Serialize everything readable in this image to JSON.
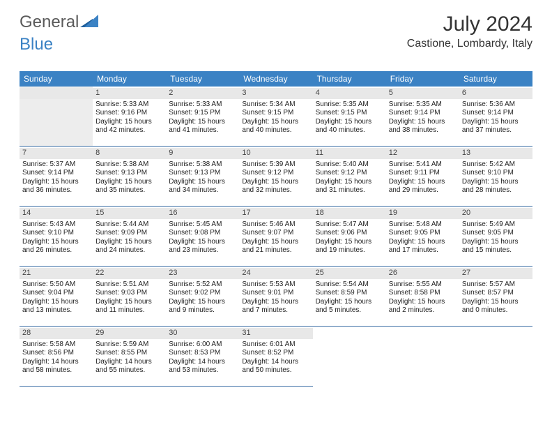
{
  "logo": {
    "general": "General",
    "blue": "Blue"
  },
  "title": "July 2024",
  "location": "Castione, Lombardy, Italy",
  "colors": {
    "header_bg": "#3b82c4",
    "header_text": "#ffffff",
    "cell_border": "#3b6ea5",
    "daynum_bg": "#e8e8e8",
    "blank_bg": "#ededed",
    "text": "#222222"
  },
  "weekdays": [
    "Sunday",
    "Monday",
    "Tuesday",
    "Wednesday",
    "Thursday",
    "Friday",
    "Saturday"
  ],
  "leading_blanks": 1,
  "trailing_blanks": 3,
  "days": [
    {
      "n": "1",
      "sr": "Sunrise: 5:33 AM",
      "ss": "Sunset: 9:16 PM",
      "d1": "Daylight: 15 hours",
      "d2": "and 42 minutes."
    },
    {
      "n": "2",
      "sr": "Sunrise: 5:33 AM",
      "ss": "Sunset: 9:15 PM",
      "d1": "Daylight: 15 hours",
      "d2": "and 41 minutes."
    },
    {
      "n": "3",
      "sr": "Sunrise: 5:34 AM",
      "ss": "Sunset: 9:15 PM",
      "d1": "Daylight: 15 hours",
      "d2": "and 40 minutes."
    },
    {
      "n": "4",
      "sr": "Sunrise: 5:35 AM",
      "ss": "Sunset: 9:15 PM",
      "d1": "Daylight: 15 hours",
      "d2": "and 40 minutes."
    },
    {
      "n": "5",
      "sr": "Sunrise: 5:35 AM",
      "ss": "Sunset: 9:14 PM",
      "d1": "Daylight: 15 hours",
      "d2": "and 38 minutes."
    },
    {
      "n": "6",
      "sr": "Sunrise: 5:36 AM",
      "ss": "Sunset: 9:14 PM",
      "d1": "Daylight: 15 hours",
      "d2": "and 37 minutes."
    },
    {
      "n": "7",
      "sr": "Sunrise: 5:37 AM",
      "ss": "Sunset: 9:14 PM",
      "d1": "Daylight: 15 hours",
      "d2": "and 36 minutes."
    },
    {
      "n": "8",
      "sr": "Sunrise: 5:38 AM",
      "ss": "Sunset: 9:13 PM",
      "d1": "Daylight: 15 hours",
      "d2": "and 35 minutes."
    },
    {
      "n": "9",
      "sr": "Sunrise: 5:38 AM",
      "ss": "Sunset: 9:13 PM",
      "d1": "Daylight: 15 hours",
      "d2": "and 34 minutes."
    },
    {
      "n": "10",
      "sr": "Sunrise: 5:39 AM",
      "ss": "Sunset: 9:12 PM",
      "d1": "Daylight: 15 hours",
      "d2": "and 32 minutes."
    },
    {
      "n": "11",
      "sr": "Sunrise: 5:40 AM",
      "ss": "Sunset: 9:12 PM",
      "d1": "Daylight: 15 hours",
      "d2": "and 31 minutes."
    },
    {
      "n": "12",
      "sr": "Sunrise: 5:41 AM",
      "ss": "Sunset: 9:11 PM",
      "d1": "Daylight: 15 hours",
      "d2": "and 29 minutes."
    },
    {
      "n": "13",
      "sr": "Sunrise: 5:42 AM",
      "ss": "Sunset: 9:10 PM",
      "d1": "Daylight: 15 hours",
      "d2": "and 28 minutes."
    },
    {
      "n": "14",
      "sr": "Sunrise: 5:43 AM",
      "ss": "Sunset: 9:10 PM",
      "d1": "Daylight: 15 hours",
      "d2": "and 26 minutes."
    },
    {
      "n": "15",
      "sr": "Sunrise: 5:44 AM",
      "ss": "Sunset: 9:09 PM",
      "d1": "Daylight: 15 hours",
      "d2": "and 24 minutes."
    },
    {
      "n": "16",
      "sr": "Sunrise: 5:45 AM",
      "ss": "Sunset: 9:08 PM",
      "d1": "Daylight: 15 hours",
      "d2": "and 23 minutes."
    },
    {
      "n": "17",
      "sr": "Sunrise: 5:46 AM",
      "ss": "Sunset: 9:07 PM",
      "d1": "Daylight: 15 hours",
      "d2": "and 21 minutes."
    },
    {
      "n": "18",
      "sr": "Sunrise: 5:47 AM",
      "ss": "Sunset: 9:06 PM",
      "d1": "Daylight: 15 hours",
      "d2": "and 19 minutes."
    },
    {
      "n": "19",
      "sr": "Sunrise: 5:48 AM",
      "ss": "Sunset: 9:05 PM",
      "d1": "Daylight: 15 hours",
      "d2": "and 17 minutes."
    },
    {
      "n": "20",
      "sr": "Sunrise: 5:49 AM",
      "ss": "Sunset: 9:05 PM",
      "d1": "Daylight: 15 hours",
      "d2": "and 15 minutes."
    },
    {
      "n": "21",
      "sr": "Sunrise: 5:50 AM",
      "ss": "Sunset: 9:04 PM",
      "d1": "Daylight: 15 hours",
      "d2": "and 13 minutes."
    },
    {
      "n": "22",
      "sr": "Sunrise: 5:51 AM",
      "ss": "Sunset: 9:03 PM",
      "d1": "Daylight: 15 hours",
      "d2": "and 11 minutes."
    },
    {
      "n": "23",
      "sr": "Sunrise: 5:52 AM",
      "ss": "Sunset: 9:02 PM",
      "d1": "Daylight: 15 hours",
      "d2": "and 9 minutes."
    },
    {
      "n": "24",
      "sr": "Sunrise: 5:53 AM",
      "ss": "Sunset: 9:01 PM",
      "d1": "Daylight: 15 hours",
      "d2": "and 7 minutes."
    },
    {
      "n": "25",
      "sr": "Sunrise: 5:54 AM",
      "ss": "Sunset: 8:59 PM",
      "d1": "Daylight: 15 hours",
      "d2": "and 5 minutes."
    },
    {
      "n": "26",
      "sr": "Sunrise: 5:55 AM",
      "ss": "Sunset: 8:58 PM",
      "d1": "Daylight: 15 hours",
      "d2": "and 2 minutes."
    },
    {
      "n": "27",
      "sr": "Sunrise: 5:57 AM",
      "ss": "Sunset: 8:57 PM",
      "d1": "Daylight: 15 hours",
      "d2": "and 0 minutes."
    },
    {
      "n": "28",
      "sr": "Sunrise: 5:58 AM",
      "ss": "Sunset: 8:56 PM",
      "d1": "Daylight: 14 hours",
      "d2": "and 58 minutes."
    },
    {
      "n": "29",
      "sr": "Sunrise: 5:59 AM",
      "ss": "Sunset: 8:55 PM",
      "d1": "Daylight: 14 hours",
      "d2": "and 55 minutes."
    },
    {
      "n": "30",
      "sr": "Sunrise: 6:00 AM",
      "ss": "Sunset: 8:53 PM",
      "d1": "Daylight: 14 hours",
      "d2": "and 53 minutes."
    },
    {
      "n": "31",
      "sr": "Sunrise: 6:01 AM",
      "ss": "Sunset: 8:52 PM",
      "d1": "Daylight: 14 hours",
      "d2": "and 50 minutes."
    }
  ]
}
